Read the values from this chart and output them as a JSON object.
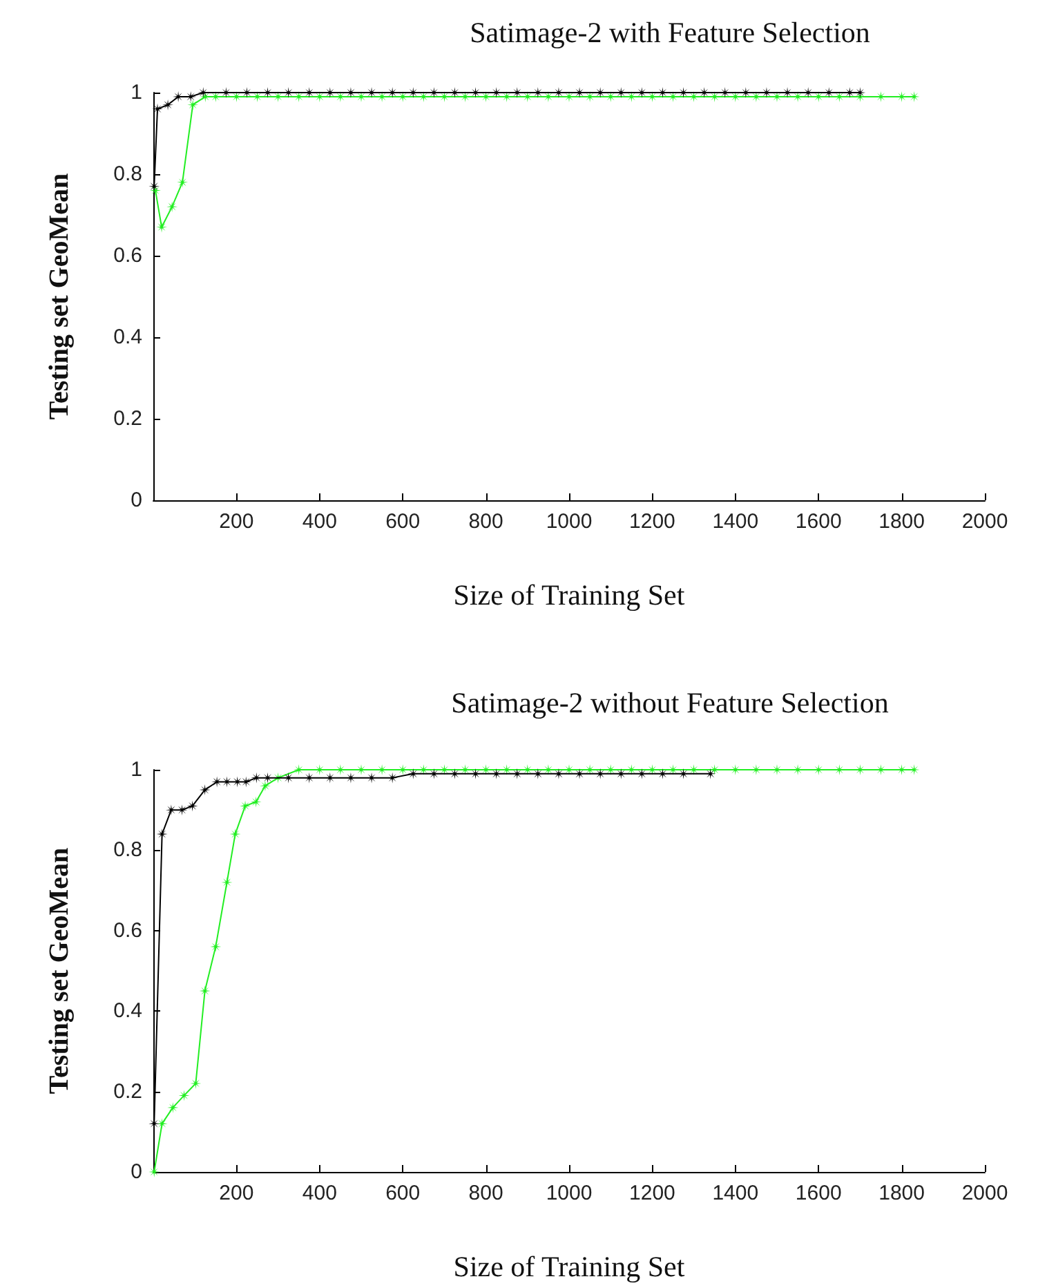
{
  "chart_data": [
    {
      "type": "line",
      "title": "Satimage-2 with Feature Selection",
      "xlabel": "Size of Training Set",
      "ylabel": "Testing set GeoMean",
      "xlim": [
        0,
        2000
      ],
      "ylim": [
        0,
        1
      ],
      "xticks": [
        200,
        400,
        600,
        800,
        1000,
        1200,
        1400,
        1600,
        1800,
        2000
      ],
      "yticks": [
        0,
        0.2,
        0.4,
        0.6,
        0.8,
        1
      ],
      "grid": false,
      "marker": "star",
      "line_style": "solid",
      "series": [
        {
          "color": "#000000",
          "x": [
            2,
            10,
            35,
            60,
            90,
            120,
            175,
            225,
            275,
            325,
            375,
            425,
            475,
            525,
            575,
            625,
            675,
            725,
            775,
            825,
            875,
            925,
            975,
            1025,
            1075,
            1125,
            1175,
            1225,
            1275,
            1325,
            1375,
            1425,
            1475,
            1525,
            1575,
            1625,
            1675,
            1700
          ],
          "values": [
            0.77,
            0.96,
            0.97,
            0.99,
            0.99,
            1.0,
            1.0,
            1.0,
            1.0,
            1.0,
            1.0,
            1.0,
            1.0,
            1.0,
            1.0,
            1.0,
            1.0,
            1.0,
            1.0,
            1.0,
            1.0,
            1.0,
            1.0,
            1.0,
            1.0,
            1.0,
            1.0,
            1.0,
            1.0,
            1.0,
            1.0,
            1.0,
            1.0,
            1.0,
            1.0,
            1.0,
            1.0,
            1.0
          ]
        },
        {
          "color": "#22ee22",
          "x": [
            5,
            20,
            45,
            70,
            95,
            125,
            150,
            200,
            250,
            300,
            350,
            400,
            450,
            500,
            550,
            600,
            650,
            700,
            750,
            800,
            850,
            900,
            950,
            1000,
            1050,
            1100,
            1150,
            1200,
            1250,
            1300,
            1350,
            1400,
            1450,
            1500,
            1550,
            1600,
            1650,
            1700,
            1750,
            1800,
            1830
          ],
          "values": [
            0.76,
            0.67,
            0.72,
            0.78,
            0.97,
            0.99,
            0.99,
            0.99,
            0.99,
            0.99,
            0.99,
            0.99,
            0.99,
            0.99,
            0.99,
            0.99,
            0.99,
            0.99,
            0.99,
            0.99,
            0.99,
            0.99,
            0.99,
            0.99,
            0.99,
            0.99,
            0.99,
            0.99,
            0.99,
            0.99,
            0.99,
            0.99,
            0.99,
            0.99,
            0.99,
            0.99,
            0.99,
            0.99,
            0.99,
            0.99,
            0.99
          ]
        }
      ]
    },
    {
      "type": "line",
      "title": "Satimage-2 without Feature Selection",
      "xlabel": "Size of Training Set",
      "ylabel": "Testing set GeoMean",
      "xlim": [
        0,
        2000
      ],
      "ylim": [
        0,
        1
      ],
      "xticks": [
        200,
        400,
        600,
        800,
        1000,
        1200,
        1400,
        1600,
        1800,
        2000
      ],
      "yticks": [
        0,
        0.2,
        0.4,
        0.6,
        0.8,
        1
      ],
      "grid": false,
      "marker": "star",
      "line_style": "solid",
      "series": [
        {
          "color": "#000000",
          "x": [
            2,
            21,
            43,
            69,
            94,
            124,
            153,
            177,
            202,
            223,
            248,
            275,
            325,
            375,
            425,
            475,
            525,
            575,
            625,
            675,
            725,
            775,
            825,
            875,
            925,
            975,
            1025,
            1075,
            1125,
            1175,
            1225,
            1275,
            1340
          ],
          "values": [
            0.12,
            0.84,
            0.9,
            0.9,
            0.91,
            0.95,
            0.97,
            0.97,
            0.97,
            0.97,
            0.98,
            0.98,
            0.98,
            0.98,
            0.98,
            0.98,
            0.98,
            0.98,
            0.99,
            0.99,
            0.99,
            0.99,
            0.99,
            0.99,
            0.99,
            0.99,
            0.99,
            0.99,
            0.99,
            0.99,
            0.99,
            0.99,
            0.99
          ]
        },
        {
          "color": "#22ee22",
          "x": [
            2,
            21,
            47,
            74,
            102,
            124,
            150,
            177,
            197,
            221,
            247,
            269,
            300,
            350,
            400,
            450,
            500,
            550,
            600,
            650,
            700,
            750,
            800,
            850,
            900,
            950,
            1000,
            1050,
            1100,
            1150,
            1200,
            1250,
            1300,
            1350,
            1400,
            1450,
            1500,
            1550,
            1600,
            1650,
            1700,
            1750,
            1800,
            1830
          ],
          "values": [
            0,
            0.12,
            0.16,
            0.19,
            0.22,
            0.45,
            0.56,
            0.72,
            0.84,
            0.91,
            0.92,
            0.96,
            0.98,
            1.0,
            1.0,
            1.0,
            1.0,
            1.0,
            1.0,
            1.0,
            1.0,
            1.0,
            1.0,
            1.0,
            1.0,
            1.0,
            1.0,
            1.0,
            1.0,
            1.0,
            1.0,
            1.0,
            1.0,
            1.0,
            1.0,
            1.0,
            1.0,
            1.0,
            1.0,
            1.0,
            1.0,
            1.0,
            1.0,
            1.0
          ]
        }
      ]
    }
  ]
}
